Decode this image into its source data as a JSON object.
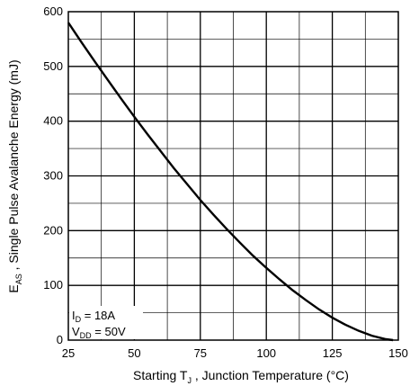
{
  "chart_data": {
    "type": "line",
    "title": "",
    "xlabel": {
      "main": "Starting T",
      "sub": "J",
      "rest": " , Junction Temperature (°C)"
    },
    "ylabel": {
      "main": "E",
      "sub": "AS",
      "rest": " ,  Single Pulse Avalanche Energy (mJ)"
    },
    "xlim": [
      25,
      150
    ],
    "ylim": [
      0,
      600
    ],
    "x_ticks": [
      25,
      50,
      75,
      100,
      125,
      150
    ],
    "y_ticks": [
      0,
      100,
      200,
      300,
      400,
      500,
      600
    ],
    "grid": true,
    "series": [
      {
        "x": [
          25,
          30,
          35,
          40,
          45,
          50,
          55,
          60,
          65,
          70,
          75,
          80,
          85,
          90,
          95,
          100,
          105,
          110,
          115,
          120,
          125,
          130,
          135,
          140,
          145,
          148
        ],
        "y": [
          580,
          544,
          509,
          475,
          441,
          408,
          376,
          345,
          314,
          285,
          256,
          229,
          203,
          178,
          154,
          132,
          111,
          91,
          73,
          56,
          41,
          28,
          17,
          8,
          2,
          0
        ]
      }
    ],
    "annotations": [
      {
        "main": "I",
        "sub": "D",
        "rest": " = 18A"
      },
      {
        "main": "V",
        "sub": "DD",
        "rest": " = 50V"
      }
    ]
  }
}
